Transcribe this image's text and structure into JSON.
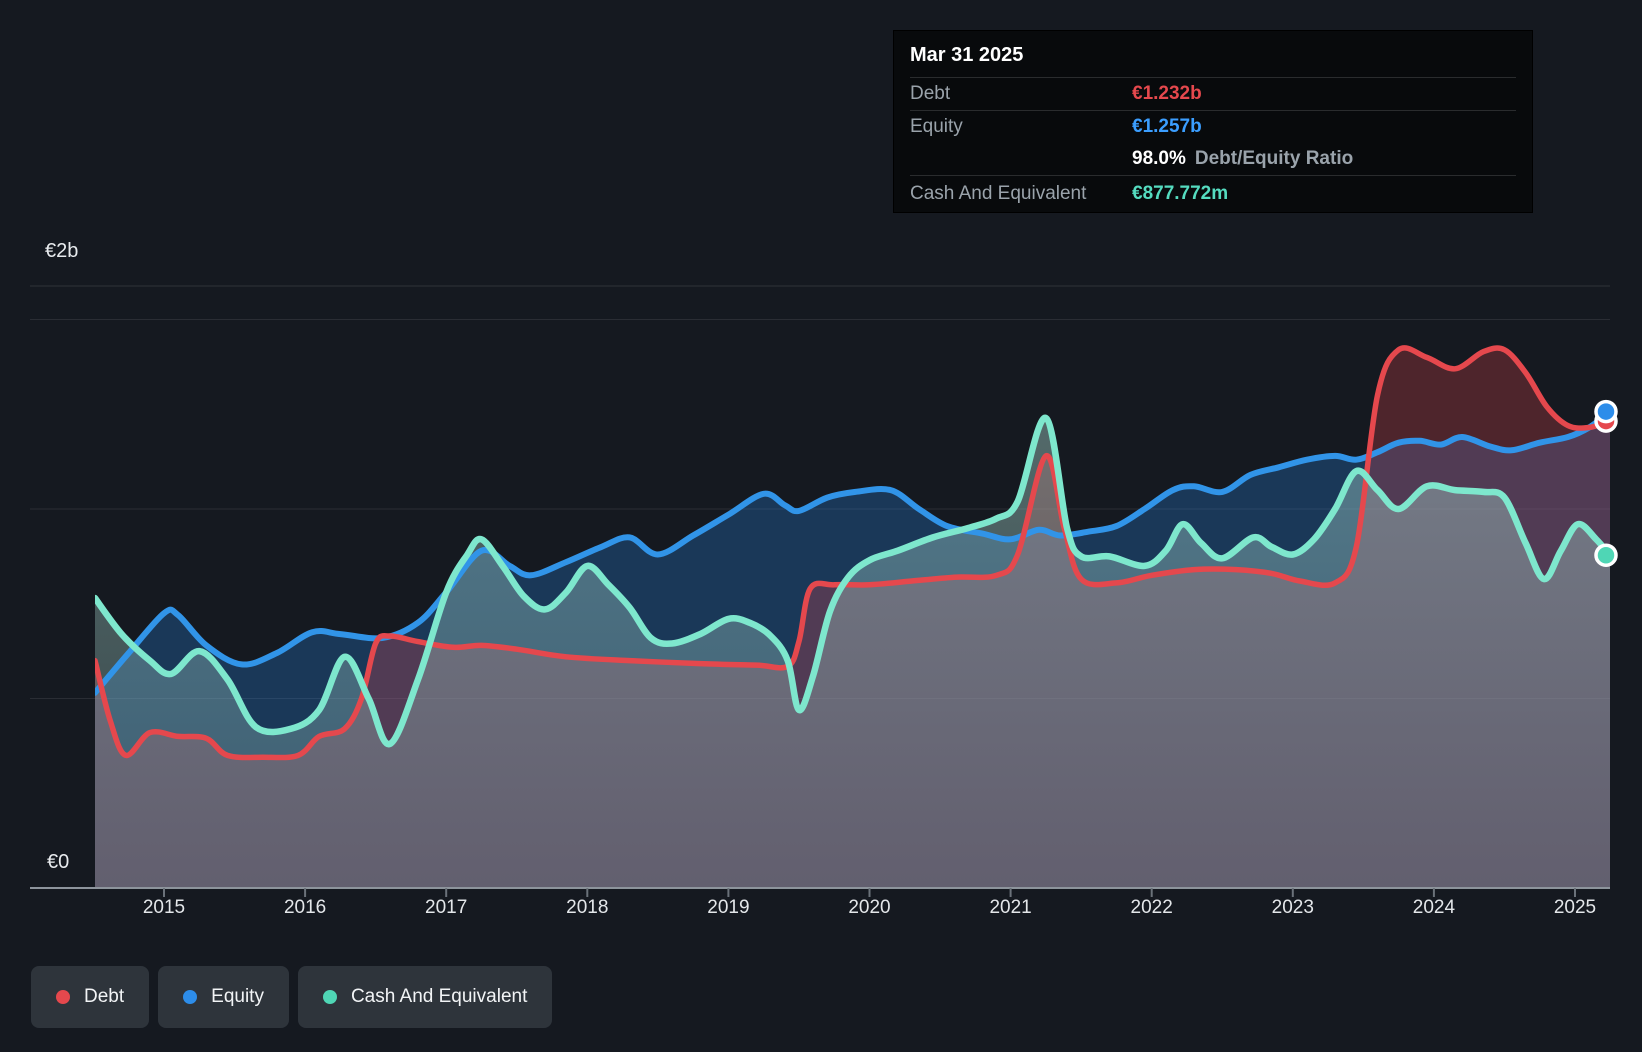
{
  "tooltip": {
    "date": "Mar 31 2025",
    "debt_label": "Debt",
    "debt_value": "€1.232b",
    "equity_label": "Equity",
    "equity_value": "€1.257b",
    "ratio_value": "98.0%",
    "ratio_label": "Debt/Equity Ratio",
    "cash_label": "Cash And Equivalent",
    "cash_value": "€877.772m"
  },
  "axis": {
    "y_top_label": "€2b",
    "y_bottom_label": "€0",
    "x_ticks": [
      "2015",
      "2016",
      "2017",
      "2018",
      "2019",
      "2020",
      "2021",
      "2022",
      "2023",
      "2024",
      "2025"
    ]
  },
  "legend": [
    {
      "id": "debt",
      "label": "Debt"
    },
    {
      "id": "equity",
      "label": "Equity"
    },
    {
      "id": "cash",
      "label": "Cash And Equivalent"
    }
  ],
  "colors": {
    "debt": "#e5484d",
    "equity": "#3194e8",
    "cash": "#7ee7cd",
    "cash_dot": "#4fd6b5",
    "debt_fill": "rgba(226,70,76,0.28)",
    "equity_fill": "rgba(41,130,218,0.30)",
    "cash_fill_top": "rgba(170,218,210,0.42)",
    "cash_fill_bottom": "rgba(138,178,172,0.30)",
    "grid": "rgba(255,255,255,0.09)",
    "axis_line": "#8d949c",
    "background": "#151920"
  },
  "chart_data": {
    "type": "area",
    "title": "Debt to Equity History (EUR billions)",
    "x_unit": "decimal year",
    "ylim": [
      0,
      2
    ],
    "y_gridlines_b": [
      0.5,
      1.0,
      1.5
    ],
    "legend_position": "bottom-left",
    "last_point_date": "Mar 31 2025",
    "series": [
      {
        "name": "Debt",
        "points": [
          [
            2014.5,
            0.6
          ],
          [
            2014.62,
            0.44
          ],
          [
            2014.73,
            0.35
          ],
          [
            2014.9,
            0.41
          ],
          [
            2015.1,
            0.4
          ],
          [
            2015.3,
            0.395
          ],
          [
            2015.45,
            0.35
          ],
          [
            2015.7,
            0.345
          ],
          [
            2015.95,
            0.35
          ],
          [
            2016.1,
            0.4
          ],
          [
            2016.28,
            0.42
          ],
          [
            2016.4,
            0.5
          ],
          [
            2016.5,
            0.645
          ],
          [
            2016.6,
            0.665
          ],
          [
            2016.8,
            0.65
          ],
          [
            2017.05,
            0.635
          ],
          [
            2017.25,
            0.64
          ],
          [
            2017.5,
            0.63
          ],
          [
            2017.85,
            0.61
          ],
          [
            2018.3,
            0.6
          ],
          [
            2018.8,
            0.592
          ],
          [
            2019.2,
            0.588
          ],
          [
            2019.42,
            0.585
          ],
          [
            2019.5,
            0.65
          ],
          [
            2019.58,
            0.79
          ],
          [
            2019.75,
            0.8
          ],
          [
            2020.0,
            0.8
          ],
          [
            2020.3,
            0.81
          ],
          [
            2020.6,
            0.82
          ],
          [
            2020.9,
            0.825
          ],
          [
            2021.05,
            0.88
          ],
          [
            2021.25,
            1.14
          ],
          [
            2021.38,
            0.95
          ],
          [
            2021.5,
            0.815
          ],
          [
            2021.75,
            0.805
          ],
          [
            2022.0,
            0.825
          ],
          [
            2022.3,
            0.84
          ],
          [
            2022.6,
            0.84
          ],
          [
            2022.85,
            0.83
          ],
          [
            2023.05,
            0.81
          ],
          [
            2023.3,
            0.805
          ],
          [
            2023.45,
            0.9
          ],
          [
            2023.6,
            1.3
          ],
          [
            2023.75,
            1.42
          ],
          [
            2023.95,
            1.4
          ],
          [
            2024.15,
            1.37
          ],
          [
            2024.35,
            1.415
          ],
          [
            2024.5,
            1.42
          ],
          [
            2024.65,
            1.36
          ],
          [
            2024.8,
            1.27
          ],
          [
            2024.95,
            1.22
          ],
          [
            2025.1,
            1.215
          ],
          [
            2025.25,
            1.232
          ]
        ]
      },
      {
        "name": "Equity",
        "points": [
          [
            2014.5,
            0.515
          ],
          [
            2014.75,
            0.62
          ],
          [
            2015.0,
            0.725
          ],
          [
            2015.1,
            0.72
          ],
          [
            2015.3,
            0.64
          ],
          [
            2015.55,
            0.59
          ],
          [
            2015.8,
            0.62
          ],
          [
            2016.05,
            0.675
          ],
          [
            2016.25,
            0.67
          ],
          [
            2016.55,
            0.66
          ],
          [
            2016.8,
            0.7
          ],
          [
            2017.0,
            0.78
          ],
          [
            2017.25,
            0.89
          ],
          [
            2017.45,
            0.85
          ],
          [
            2017.6,
            0.825
          ],
          [
            2017.85,
            0.86
          ],
          [
            2018.1,
            0.9
          ],
          [
            2018.3,
            0.925
          ],
          [
            2018.5,
            0.88
          ],
          [
            2018.75,
            0.93
          ],
          [
            2019.0,
            0.985
          ],
          [
            2019.25,
            1.04
          ],
          [
            2019.4,
            1.01
          ],
          [
            2019.5,
            0.995
          ],
          [
            2019.7,
            1.03
          ],
          [
            2019.9,
            1.045
          ],
          [
            2020.15,
            1.05
          ],
          [
            2020.35,
            1.0
          ],
          [
            2020.55,
            0.955
          ],
          [
            2020.8,
            0.935
          ],
          [
            2021.0,
            0.92
          ],
          [
            2021.2,
            0.945
          ],
          [
            2021.35,
            0.93
          ],
          [
            2021.55,
            0.94
          ],
          [
            2021.75,
            0.955
          ],
          [
            2021.95,
            1.0
          ],
          [
            2022.15,
            1.05
          ],
          [
            2022.3,
            1.06
          ],
          [
            2022.5,
            1.045
          ],
          [
            2022.7,
            1.09
          ],
          [
            2022.9,
            1.11
          ],
          [
            2023.1,
            1.13
          ],
          [
            2023.3,
            1.14
          ],
          [
            2023.45,
            1.13
          ],
          [
            2023.6,
            1.15
          ],
          [
            2023.75,
            1.175
          ],
          [
            2023.9,
            1.18
          ],
          [
            2024.05,
            1.17
          ],
          [
            2024.2,
            1.19
          ],
          [
            2024.4,
            1.165
          ],
          [
            2024.55,
            1.155
          ],
          [
            2024.75,
            1.175
          ],
          [
            2024.95,
            1.19
          ],
          [
            2025.1,
            1.215
          ],
          [
            2025.25,
            1.257
          ]
        ]
      },
      {
        "name": "Cash And Equivalent",
        "points": [
          [
            2014.5,
            0.765
          ],
          [
            2014.7,
            0.67
          ],
          [
            2014.9,
            0.6
          ],
          [
            2015.05,
            0.565
          ],
          [
            2015.25,
            0.625
          ],
          [
            2015.45,
            0.55
          ],
          [
            2015.65,
            0.425
          ],
          [
            2015.9,
            0.42
          ],
          [
            2016.1,
            0.47
          ],
          [
            2016.28,
            0.61
          ],
          [
            2016.45,
            0.5
          ],
          [
            2016.6,
            0.38
          ],
          [
            2016.8,
            0.55
          ],
          [
            2017.0,
            0.78
          ],
          [
            2017.15,
            0.88
          ],
          [
            2017.25,
            0.92
          ],
          [
            2017.4,
            0.85
          ],
          [
            2017.55,
            0.77
          ],
          [
            2017.7,
            0.735
          ],
          [
            2017.85,
            0.78
          ],
          [
            2018.0,
            0.85
          ],
          [
            2018.15,
            0.8
          ],
          [
            2018.3,
            0.74
          ],
          [
            2018.45,
            0.66
          ],
          [
            2018.6,
            0.645
          ],
          [
            2018.8,
            0.67
          ],
          [
            2019.0,
            0.71
          ],
          [
            2019.15,
            0.7
          ],
          [
            2019.3,
            0.665
          ],
          [
            2019.42,
            0.6
          ],
          [
            2019.5,
            0.47
          ],
          [
            2019.6,
            0.56
          ],
          [
            2019.72,
            0.73
          ],
          [
            2019.85,
            0.82
          ],
          [
            2020.0,
            0.865
          ],
          [
            2020.2,
            0.89
          ],
          [
            2020.45,
            0.925
          ],
          [
            2020.7,
            0.95
          ],
          [
            2020.9,
            0.975
          ],
          [
            2021.05,
            1.02
          ],
          [
            2021.25,
            1.24
          ],
          [
            2021.4,
            0.95
          ],
          [
            2021.5,
            0.875
          ],
          [
            2021.7,
            0.875
          ],
          [
            2021.95,
            0.85
          ],
          [
            2022.1,
            0.89
          ],
          [
            2022.22,
            0.96
          ],
          [
            2022.35,
            0.91
          ],
          [
            2022.5,
            0.87
          ],
          [
            2022.72,
            0.925
          ],
          [
            2022.85,
            0.9
          ],
          [
            2023.0,
            0.88
          ],
          [
            2023.15,
            0.92
          ],
          [
            2023.3,
            1.0
          ],
          [
            2023.45,
            1.1
          ],
          [
            2023.6,
            1.05
          ],
          [
            2023.75,
            1.0
          ],
          [
            2023.95,
            1.06
          ],
          [
            2024.15,
            1.05
          ],
          [
            2024.35,
            1.045
          ],
          [
            2024.5,
            1.03
          ],
          [
            2024.65,
            0.91
          ],
          [
            2024.78,
            0.815
          ],
          [
            2024.9,
            0.89
          ],
          [
            2025.02,
            0.96
          ],
          [
            2025.15,
            0.92
          ],
          [
            2025.25,
            0.878
          ]
        ]
      }
    ],
    "end_values": {
      "debt_b": 1.232,
      "equity_b": 1.257,
      "cash_b": 0.877772,
      "debt_equity_ratio_pct": 98.0
    }
  }
}
